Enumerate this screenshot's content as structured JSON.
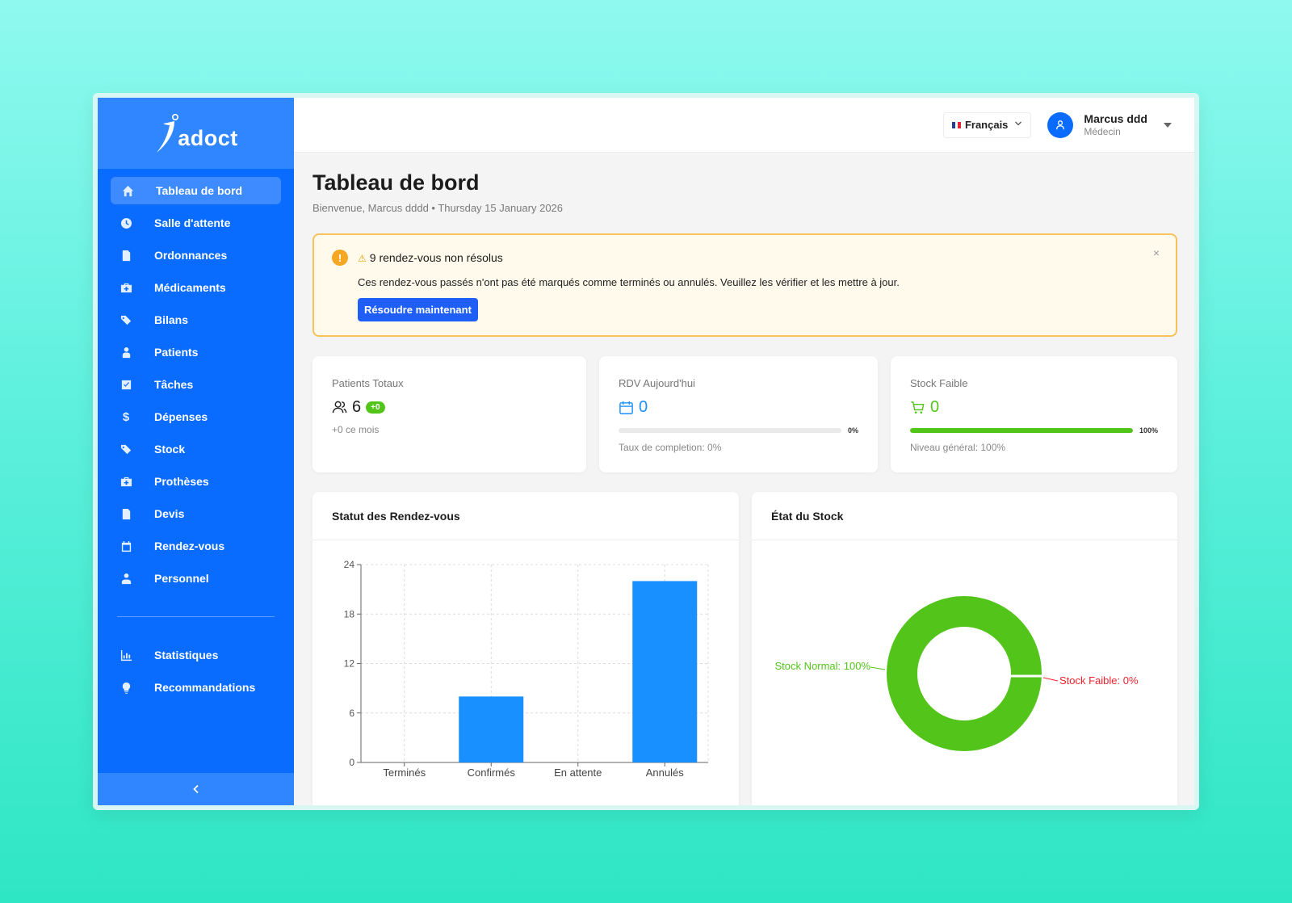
{
  "brand": {
    "name": "adoct"
  },
  "sidebar": {
    "items": [
      {
        "label": "Tableau de bord",
        "icon": "home-icon",
        "active": true
      },
      {
        "label": "Salle d'attente",
        "icon": "clock-icon"
      },
      {
        "label": "Ordonnances",
        "icon": "document-icon"
      },
      {
        "label": "Médicaments",
        "icon": "medical-kit-icon"
      },
      {
        "label": "Bilans",
        "icon": "tags-icon"
      },
      {
        "label": "Patients",
        "icon": "patient-icon"
      },
      {
        "label": "Tâches",
        "icon": "checkbox-icon"
      },
      {
        "label": "Dépenses",
        "icon": "dollar-icon"
      },
      {
        "label": "Stock",
        "icon": "tags-icon"
      },
      {
        "label": "Prothèses",
        "icon": "medical-kit-icon"
      },
      {
        "label": "Devis",
        "icon": "document-icon"
      },
      {
        "label": "Rendez-vous",
        "icon": "calendar-icon"
      },
      {
        "label": "Personnel",
        "icon": "staff-icon"
      }
    ],
    "secondary_items": [
      {
        "label": "Statistiques",
        "icon": "bar-chart-icon"
      },
      {
        "label": "Recommandations",
        "icon": "bulb-icon"
      }
    ],
    "collapse_icon": "chevron-left-icon"
  },
  "header": {
    "language": "Français",
    "user": {
      "name": "Marcus ddd",
      "role": "Médecin"
    }
  },
  "page": {
    "title": "Tableau de bord",
    "subtitle": "Bienvenue, Marcus dddd • Thursday 15 January 2026"
  },
  "alert": {
    "title": "9 rendez-vous non résolus",
    "message": "Ces rendez-vous passés n'ont pas été marqués comme terminés ou annulés. Veuillez les vérifier et les mettre à jour.",
    "button": "Résoudre maintenant",
    "close": "×"
  },
  "stats": {
    "patients": {
      "label": "Patients Totaux",
      "value": "6",
      "badge": "+0",
      "note": "+0 ce mois"
    },
    "rdv": {
      "label": "RDV Aujourd'hui",
      "value": "0",
      "progress_percent": 0,
      "progress_label": "0%",
      "note": "Taux de completion: 0%"
    },
    "stock": {
      "label": "Stock Faible",
      "value": "0",
      "progress_percent": 100,
      "progress_label": "100%",
      "note": "Niveau général: 100%"
    }
  },
  "colors": {
    "primary": "#0a6cff",
    "accent_blue": "#1890ff",
    "green": "#52c41a",
    "red": "#f5222d",
    "warning": "#f6c35a"
  },
  "charts": {
    "appointments": {
      "title": "Statut des Rendez-vous"
    },
    "stock": {
      "title": "État du Stock"
    }
  },
  "chart_data": [
    {
      "type": "bar",
      "title": "Statut des Rendez-vous",
      "categories": [
        "Terminés",
        "Confirmés",
        "En attente",
        "Annulés"
      ],
      "values": [
        0,
        8,
        0,
        22
      ],
      "ylim": [
        0,
        24
      ],
      "yticks": [
        0,
        6,
        12,
        18,
        24
      ],
      "grid": true,
      "color": "#1890ff"
    },
    {
      "type": "pie",
      "title": "État du Stock",
      "donut": true,
      "slices": [
        {
          "label": "Stock Normal: 100%",
          "value": 100,
          "color": "#52c41a"
        },
        {
          "label": "Stock Faible: 0%",
          "value": 0,
          "color": "#f5222d"
        }
      ]
    }
  ]
}
